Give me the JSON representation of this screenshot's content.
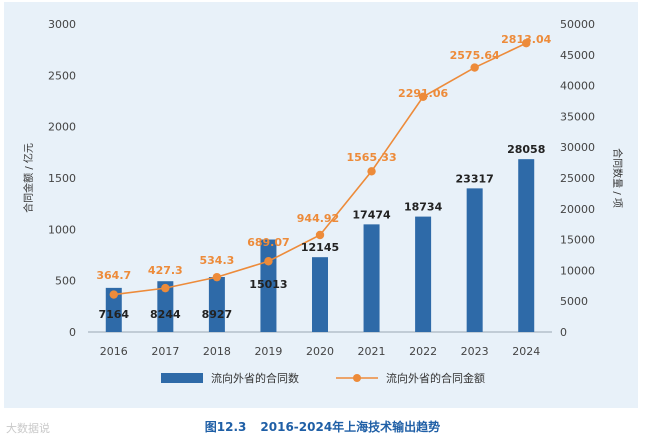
{
  "colors": {
    "bar": "#2e6aa8",
    "line": "#ed8b3a",
    "panel": "#e8f1f9",
    "caption": "#1f5fa6"
  },
  "chart_data": {
    "type": "bar+line",
    "categories": [
      "2016",
      "2017",
      "2018",
      "2019",
      "2020",
      "2021",
      "2022",
      "2023",
      "2024"
    ],
    "series": [
      {
        "name": "流向外省的合同数",
        "axis": "right",
        "type": "bar",
        "values": [
          7164,
          8244,
          8927,
          15013,
          12145,
          17474,
          18734,
          23317,
          28058
        ]
      },
      {
        "name": "流向外省的合同金额",
        "axis": "left",
        "type": "line",
        "values": [
          364.7,
          427.3,
          534.3,
          689.07,
          944.92,
          1565.33,
          2291.06,
          2575.64,
          2813.04
        ]
      }
    ],
    "bar_labels": [
      "7164",
      "8244",
      "8927",
      "15013",
      "12145",
      "17474",
      "18734",
      "23317",
      "28058"
    ],
    "line_labels": [
      "364.7",
      "427.3",
      "534.3",
      "689.07",
      "944.92",
      "1565.33",
      "2291.06",
      "2575.64",
      "2813.04"
    ],
    "left_axis": {
      "label": "合同金额 / 亿元",
      "ylim": [
        0,
        3000
      ],
      "ticks": [
        "0",
        "500",
        "1000",
        "1500",
        "2000",
        "2500",
        "3000"
      ]
    },
    "right_axis": {
      "label": "合同数量 / 项",
      "ylim": [
        0,
        50000
      ],
      "ticks": [
        "0",
        "5000",
        "10000",
        "15000",
        "20000",
        "25000",
        "30000",
        "35000",
        "40000",
        "45000",
        "50000"
      ]
    },
    "legend": [
      "流向外省的合同数",
      "流向外省的合同金额"
    ],
    "legend_position": "bottom"
  },
  "caption": {
    "number": "图12.3",
    "title": "2016-2024年上海技术输出趋势"
  },
  "watermark": "大数据说"
}
